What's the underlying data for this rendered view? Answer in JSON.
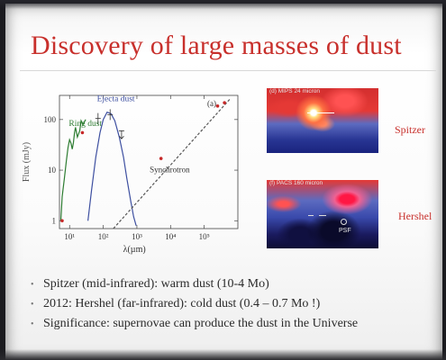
{
  "slide": {
    "title": "Discovery of large masses of dust",
    "bullets": [
      "Spitzer (mid-infrared): warm dust (10-4 Mo)",
      "2012: Hershel (far-infrared): cold dust (0.4 – 0.7 Mo !)",
      "Significance: supernovae can produce the dust in the Universe"
    ]
  },
  "chart_data": {
    "type": "line",
    "panel_label": "(a)",
    "xlabel": "λ(µm)",
    "ylabel": "Flux (mJy)",
    "x_scale": "log",
    "y_scale": "log",
    "xlim": [
      5,
      1000000
    ],
    "ylim": [
      0.7,
      300
    ],
    "x_ticks": [
      {
        "value": 10,
        "label": "10¹"
      },
      {
        "value": 100,
        "label": "10²"
      },
      {
        "value": 1000,
        "label": "10³"
      },
      {
        "value": 10000,
        "label": "10⁴"
      },
      {
        "value": 100000,
        "label": "10⁵"
      }
    ],
    "y_ticks": [
      {
        "value": 1,
        "label": "1"
      },
      {
        "value": 10,
        "label": "10"
      },
      {
        "value": 100,
        "label": "100"
      }
    ],
    "annotations": [
      "Ring dust",
      "Ejecta dust",
      "Synchrotron"
    ],
    "series": [
      {
        "name": "Ring dust",
        "style": "solid",
        "color": "#3d4fa0",
        "x": [
          5.5,
          6,
          7,
          8,
          9,
          10,
          11,
          12,
          13,
          14,
          15,
          17,
          20,
          22,
          25,
          28,
          30
        ],
        "y": [
          1.0,
          3,
          7,
          15,
          28,
          40,
          34,
          26,
          35,
          55,
          70,
          45,
          60,
          95,
          80,
          92,
          100
        ]
      },
      {
        "name": "Ejecta dust",
        "style": "solid",
        "color": "#3d4fa0",
        "x": [
          35,
          45,
          60,
          80,
          100,
          130,
          170,
          220,
          300,
          400,
          500,
          650,
          800,
          950
        ],
        "y": [
          1,
          4,
          18,
          55,
          100,
          140,
          130,
          95,
          45,
          18,
          7,
          2.5,
          1.2,
          0.8
        ]
      },
      {
        "name": "Synchrotron",
        "style": "dashed",
        "color": "#555555",
        "x": [
          200,
          600000
        ],
        "y": [
          0.7,
          260
        ]
      }
    ],
    "data_points": [
      {
        "x": 70,
        "y": 105,
        "kind": "errorbar"
      },
      {
        "x": 160,
        "y": 125,
        "kind": "errorbar"
      },
      {
        "x": 350,
        "y": 60,
        "kind": "upper-limit"
      },
      {
        "x": 24,
        "y": 55,
        "kind": "point"
      },
      {
        "x": 6,
        "y": 1.0,
        "kind": "point"
      },
      {
        "x": 5200,
        "y": 17,
        "kind": "point"
      },
      {
        "x": 250000,
        "y": 185,
        "kind": "point"
      },
      {
        "x": 400000,
        "y": 215,
        "kind": "point"
      }
    ]
  },
  "images": {
    "spitzer": {
      "caption": "(d) MIPS 24 micron",
      "label": "Spitzer"
    },
    "herschel": {
      "caption": "(f) PACS 160 micron",
      "label": "Hershel",
      "psf_label": "PSF"
    }
  },
  "colors": {
    "title": "#c8302c",
    "curve": "#3d4fa0",
    "ring_data": "#2e7d32",
    "points": "#c62828",
    "bullet_text": "#2b2b2b"
  }
}
